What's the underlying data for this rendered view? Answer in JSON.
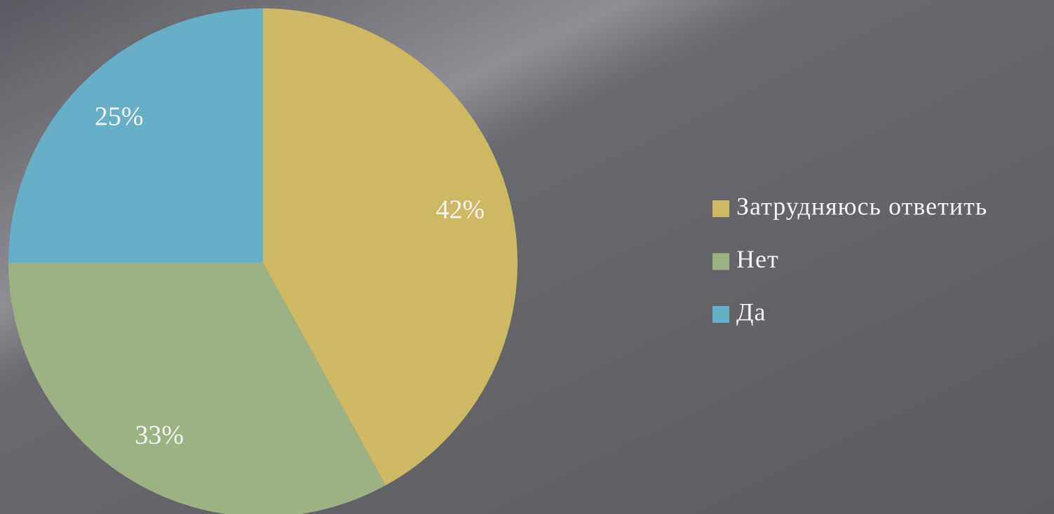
{
  "chart_data": {
    "type": "pie",
    "categories": [
      "Затрудняюсь ответить",
      "Нет",
      "Да"
    ],
    "values": [
      42,
      33,
      25
    ],
    "value_labels": [
      "42%",
      "33%",
      "25%"
    ],
    "colors": [
      "#cdb864",
      "#9db283",
      "#67afc8"
    ],
    "legend": "right"
  }
}
